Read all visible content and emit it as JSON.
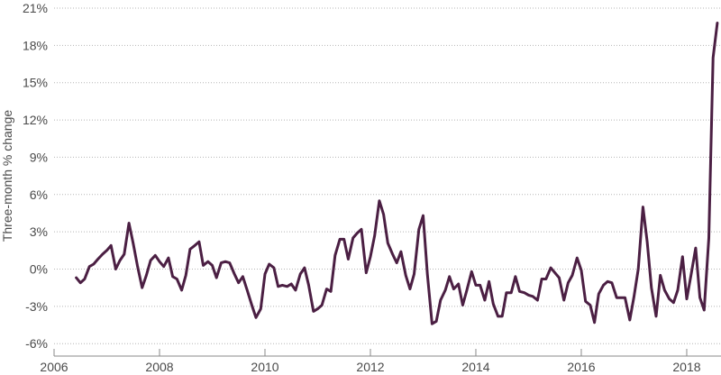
{
  "chart_data": {
    "type": "line",
    "title": "",
    "xlabel": "",
    "ylabel": "Three-month % change",
    "xlim": [
      2006,
      2018.65
    ],
    "ylim": [
      -7,
      21
    ],
    "x_ticks": [
      2006,
      2008,
      2010,
      2012,
      2014,
      2016,
      2018
    ],
    "x_tick_labels": [
      "2006",
      "2008",
      "2010",
      "2012",
      "2014",
      "2016",
      "2018"
    ],
    "y_ticks": [
      21,
      18,
      15,
      12,
      9,
      6,
      3,
      0,
      -3,
      -6
    ],
    "y_tick_labels": [
      "21%",
      "18%",
      "15%",
      "12%",
      "9%",
      "6%",
      "3%",
      "0%",
      "-3%",
      "-6%"
    ],
    "grid": "horizontal-dotted",
    "legend": "none",
    "line_color": "#4b1f43",
    "series": [
      {
        "name": "",
        "x": [
          2006.42,
          2006.5,
          2006.58,
          2006.67,
          2006.75,
          2006.83,
          2006.92,
          2007.0,
          2007.08,
          2007.17,
          2007.25,
          2007.33,
          2007.42,
          2007.5,
          2007.58,
          2007.67,
          2007.75,
          2007.83,
          2007.92,
          2008.0,
          2008.08,
          2008.17,
          2008.25,
          2008.33,
          2008.42,
          2008.5,
          2008.58,
          2008.67,
          2008.75,
          2008.83,
          2008.92,
          2009.0,
          2009.08,
          2009.17,
          2009.25,
          2009.33,
          2009.42,
          2009.5,
          2009.58,
          2009.67,
          2009.75,
          2009.83,
          2009.92,
          2010.0,
          2010.08,
          2010.17,
          2010.25,
          2010.33,
          2010.42,
          2010.5,
          2010.58,
          2010.67,
          2010.75,
          2010.83,
          2010.92,
          2011.0,
          2011.08,
          2011.17,
          2011.25,
          2011.33,
          2011.42,
          2011.5,
          2011.58,
          2011.67,
          2011.75,
          2011.83,
          2011.92,
          2012.0,
          2012.08,
          2012.17,
          2012.25,
          2012.33,
          2012.42,
          2012.5,
          2012.58,
          2012.67,
          2012.75,
          2012.83,
          2012.92,
          2013.0,
          2013.08,
          2013.17,
          2013.25,
          2013.33,
          2013.42,
          2013.5,
          2013.58,
          2013.67,
          2013.75,
          2013.83,
          2013.92,
          2014.0,
          2014.08,
          2014.17,
          2014.25,
          2014.33,
          2014.42,
          2014.5,
          2014.58,
          2014.67,
          2014.75,
          2014.83,
          2014.92,
          2015.0,
          2015.08,
          2015.17,
          2015.25,
          2015.33,
          2015.42,
          2015.5,
          2015.58,
          2015.67,
          2015.75,
          2015.83,
          2015.92,
          2016.0,
          2016.08,
          2016.17,
          2016.25,
          2016.33,
          2016.42,
          2016.5,
          2016.58,
          2016.67,
          2016.75,
          2016.83,
          2016.92,
          2017.0,
          2017.08,
          2017.17,
          2017.25,
          2017.33,
          2017.42,
          2017.5,
          2017.58,
          2017.67,
          2017.75,
          2017.83,
          2017.92,
          2018.0,
          2018.08,
          2018.17,
          2018.25,
          2018.33,
          2018.42,
          2018.5,
          2018.58
        ],
        "y": [
          -0.7,
          -1.1,
          -0.8,
          0.2,
          0.4,
          0.8,
          1.2,
          1.5,
          1.9,
          0.0,
          0.7,
          1.2,
          3.7,
          2.1,
          0.3,
          -1.5,
          -0.5,
          0.7,
          1.1,
          0.6,
          0.2,
          0.9,
          -0.6,
          -0.8,
          -1.7,
          -0.5,
          1.6,
          1.9,
          2.2,
          0.3,
          0.6,
          0.3,
          -0.7,
          0.5,
          0.6,
          0.5,
          -0.4,
          -1.1,
          -0.6,
          -1.8,
          -2.9,
          -3.9,
          -3.2,
          -0.4,
          0.4,
          0.1,
          -1.4,
          -1.3,
          -1.4,
          -1.2,
          -1.7,
          -0.4,
          0.1,
          -1.3,
          -3.4,
          -3.2,
          -2.9,
          -1.6,
          -1.8,
          1.1,
          2.4,
          2.4,
          0.8,
          2.5,
          2.9,
          3.2,
          -0.3,
          1.0,
          2.7,
          5.5,
          4.4,
          2.1,
          1.2,
          0.5,
          1.4,
          -0.5,
          -1.6,
          -0.4,
          3.2,
          4.3,
          -0.4,
          -4.4,
          -4.2,
          -2.5,
          -1.7,
          -0.6,
          -1.6,
          -1.2,
          -2.9,
          -1.7,
          -0.2,
          -1.3,
          -1.3,
          -2.5,
          -1.0,
          -2.8,
          -3.8,
          -3.8,
          -1.9,
          -1.9,
          -0.6,
          -1.8,
          -1.9,
          -2.1,
          -2.2,
          -2.5,
          -0.8,
          -0.8,
          0.1,
          -0.3,
          -0.7,
          -2.5,
          -1.1,
          -0.5,
          0.9,
          -0.1,
          -2.6,
          -2.9,
          -4.3,
          -2.0,
          -1.3,
          -1.0,
          -1.1,
          -2.3,
          -2.3,
          -2.3,
          -4.1,
          -2.2,
          0.0,
          5.0,
          2.2,
          -1.5,
          -3.8,
          -0.5,
          -1.7,
          -2.4,
          -2.7,
          -1.7,
          1.0,
          -2.4,
          -0.5,
          1.7,
          -2.3,
          -3.3,
          2.5,
          17.0,
          19.8
        ]
      }
    ]
  }
}
